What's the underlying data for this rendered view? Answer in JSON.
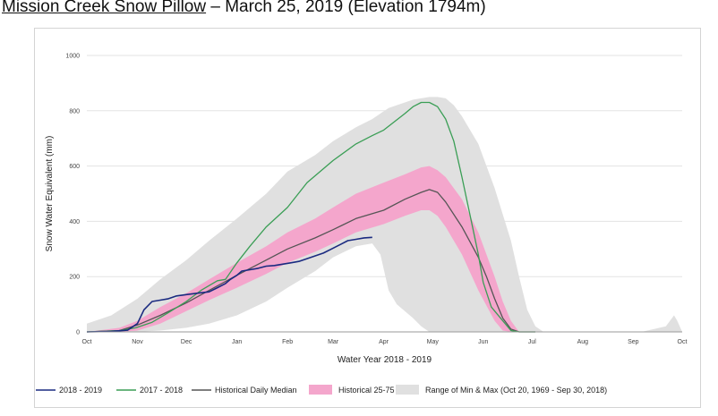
{
  "page": {
    "title_station": "Mission Creek Snow Pillow",
    "title_rest": " – March 25, 2019 (Elevation 1794m)"
  },
  "chart_data": {
    "type": "line",
    "title": "Mission Creek Snow Pillow – March 25, 2019 (Elevation 1794m)",
    "xlabel": "Water Year 2018 - 2019",
    "ylabel": "Snow Water Equivalent (mm)",
    "ylim": [
      0,
      1000
    ],
    "xlim": [
      0,
      365
    ],
    "yticks": [
      0,
      200,
      400,
      600,
      800,
      1000
    ],
    "x_ticks": [
      {
        "label": "Oct",
        "day": 0
      },
      {
        "label": "Nov",
        "day": 31
      },
      {
        "label": "Dec",
        "day": 61
      },
      {
        "label": "Jan",
        "day": 92
      },
      {
        "label": "Feb",
        "day": 123
      },
      {
        "label": "Mar",
        "day": 151
      },
      {
        "label": "Apr",
        "day": 182
      },
      {
        "label": "May",
        "day": 212
      },
      {
        "label": "Jun",
        "day": 243
      },
      {
        "label": "Jul",
        "day": 273
      },
      {
        "label": "Aug",
        "day": 304
      },
      {
        "label": "Sep",
        "day": 335
      },
      {
        "label": "Oct",
        "day": 365
      }
    ],
    "grid": true,
    "legend_position": "bottom",
    "series": [
      {
        "name": "2018 - 2019",
        "kind": "line",
        "color": "#1a2a80",
        "x": [
          0,
          15,
          25,
          31,
          35,
          40,
          45,
          50,
          55,
          61,
          68,
          75,
          80,
          85,
          88,
          92,
          95,
          100,
          105,
          110,
          115,
          120,
          125,
          130,
          135,
          140,
          145,
          150,
          155,
          160,
          165,
          170,
          175
        ],
        "y": [
          0,
          2,
          6,
          30,
          80,
          110,
          115,
          120,
          130,
          135,
          140,
          145,
          160,
          175,
          190,
          205,
          220,
          225,
          230,
          238,
          240,
          245,
          250,
          255,
          265,
          275,
          285,
          300,
          315,
          330,
          335,
          340,
          342
        ]
      },
      {
        "name": "2017 - 2018",
        "kind": "line",
        "color": "#3a9e55",
        "x": [
          0,
          20,
          30,
          40,
          50,
          61,
          70,
          80,
          85,
          92,
          100,
          110,
          123,
          135,
          151,
          165,
          175,
          182,
          195,
          200,
          205,
          210,
          215,
          220,
          225,
          230,
          235,
          240,
          243,
          248,
          255,
          260,
          265,
          270,
          275
        ],
        "y": [
          0,
          5,
          15,
          35,
          70,
          110,
          150,
          185,
          190,
          250,
          310,
          380,
          450,
          540,
          620,
          680,
          710,
          730,
          790,
          815,
          830,
          830,
          815,
          770,
          690,
          560,
          420,
          280,
          180,
          90,
          40,
          5,
          0,
          0,
          0
        ]
      },
      {
        "name": "Historical Daily Median",
        "kind": "line",
        "color": "#555555",
        "x": [
          0,
          20,
          31,
          45,
          61,
          75,
          92,
          110,
          123,
          140,
          151,
          165,
          182,
          195,
          205,
          210,
          215,
          220,
          230,
          240,
          245,
          250,
          255,
          260,
          265,
          270,
          275
        ],
        "y": [
          0,
          5,
          25,
          60,
          105,
          150,
          205,
          260,
          300,
          340,
          370,
          410,
          440,
          480,
          505,
          515,
          505,
          470,
          380,
          270,
          200,
          120,
          50,
          10,
          0,
          0,
          0
        ]
      },
      {
        "name": "Historical 25-75",
        "kind": "band",
        "color": "#f4a6cc",
        "x": [
          0,
          20,
          31,
          45,
          61,
          75,
          92,
          110,
          123,
          140,
          151,
          165,
          182,
          195,
          205,
          210,
          215,
          220,
          230,
          240,
          250,
          255,
          260,
          265,
          270
        ],
        "low": [
          0,
          0,
          5,
          30,
          75,
          115,
          160,
          210,
          250,
          290,
          320,
          360,
          390,
          420,
          440,
          440,
          420,
          380,
          280,
          150,
          40,
          5,
          0,
          0,
          0
        ],
        "high": [
          0,
          15,
          40,
          90,
          140,
          190,
          250,
          310,
          360,
          410,
          450,
          500,
          540,
          570,
          595,
          600,
          585,
          560,
          480,
          360,
          200,
          110,
          40,
          0,
          0
        ]
      },
      {
        "name": "Range of Min & Max (Oct 20, 1969 - Sep 30, 2018)",
        "kind": "band",
        "color": "#e0e0e0",
        "x": [
          0,
          15,
          31,
          45,
          61,
          75,
          92,
          110,
          123,
          140,
          151,
          165,
          175,
          180,
          185,
          190,
          200,
          205,
          210,
          215,
          220,
          225,
          230,
          240,
          250,
          260,
          265,
          270,
          275,
          280,
          300,
          340,
          355,
          360,
          362,
          365
        ],
        "low": [
          0,
          0,
          0,
          5,
          15,
          30,
          60,
          110,
          160,
          220,
          270,
          310,
          320,
          280,
          150,
          100,
          50,
          20,
          0,
          0,
          0,
          0,
          0,
          0,
          0,
          0,
          0,
          0,
          0,
          0,
          0,
          0,
          0,
          0,
          0,
          0
        ],
        "high": [
          30,
          60,
          120,
          190,
          260,
          330,
          410,
          500,
          580,
          640,
          690,
          740,
          770,
          790,
          810,
          820,
          840,
          845,
          850,
          850,
          845,
          820,
          780,
          680,
          520,
          330,
          200,
          80,
          20,
          0,
          0,
          0,
          20,
          60,
          40,
          0
        ]
      }
    ]
  }
}
